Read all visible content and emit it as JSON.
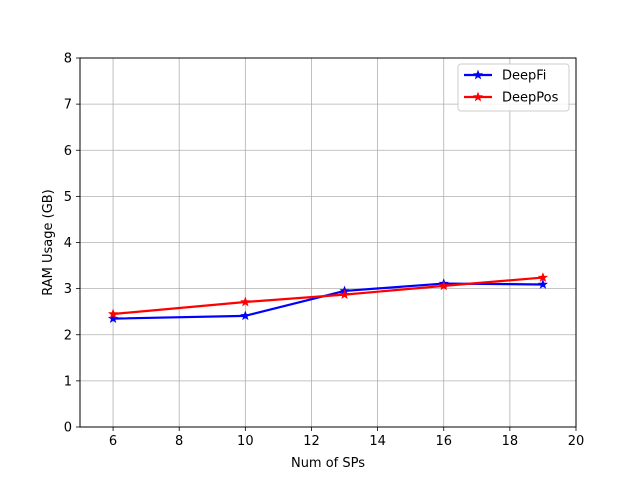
{
  "chart_data": {
    "type": "line",
    "xlabel": "Num of SPs",
    "ylabel": "RAM Usage (GB)",
    "xlim": [
      5,
      20
    ],
    "ylim": [
      0,
      8
    ],
    "xticks": [
      6,
      8,
      10,
      12,
      14,
      16,
      18,
      20
    ],
    "yticks": [
      0,
      1,
      2,
      3,
      4,
      5,
      6,
      7,
      8
    ],
    "grid": true,
    "legend_position": "top-right",
    "x": [
      6,
      10,
      13,
      16,
      19
    ],
    "series": [
      {
        "name": "DeepFi",
        "color": "#0000ff",
        "marker": "star",
        "values": [
          2.35,
          2.41,
          2.95,
          3.11,
          3.09
        ]
      },
      {
        "name": "DeepPos",
        "color": "#ff0000",
        "marker": "star",
        "values": [
          2.45,
          2.71,
          2.87,
          3.06,
          3.24
        ]
      }
    ]
  }
}
